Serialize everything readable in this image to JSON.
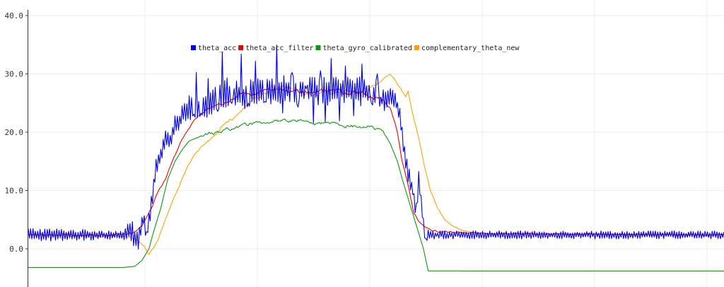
{
  "chart_data": {
    "type": "line",
    "title": "",
    "xlabel": "",
    "ylabel": "",
    "ylim": [
      -6.5,
      40.5
    ],
    "xlim": [
      0,
      588
    ],
    "grid": true,
    "legend_position": "top-center",
    "y_ticks": [
      {
        "value": 0,
        "label": "0.0"
      },
      {
        "value": 10,
        "label": "10.0"
      },
      {
        "value": 20,
        "label": "20.0"
      },
      {
        "value": 30,
        "label": "30.0"
      },
      {
        "value": 40,
        "label": "40.0"
      }
    ],
    "x_grid_values": [
      0,
      95,
      190,
      285,
      380,
      475,
      570
    ],
    "series": [
      {
        "name": "theta_acc",
        "color": "#0000ee",
        "anchors": [
          [
            0,
            2.4
          ],
          [
            80,
            2.4
          ],
          [
            87,
            3.0
          ],
          [
            93,
            1.0
          ],
          [
            97,
            5.0
          ],
          [
            100,
            2.0
          ],
          [
            104,
            8.0
          ],
          [
            108,
            14
          ],
          [
            112,
            16
          ],
          [
            116,
            19
          ],
          [
            120,
            18
          ],
          [
            124,
            22
          ],
          [
            128,
            22
          ],
          [
            132,
            24
          ],
          [
            140,
            24
          ],
          [
            150,
            24
          ],
          [
            160,
            26
          ],
          [
            170,
            27
          ],
          [
            180,
            26
          ],
          [
            190,
            27
          ],
          [
            200,
            27
          ],
          [
            210,
            27
          ],
          [
            220,
            27.5
          ],
          [
            230,
            27
          ],
          [
            240,
            27
          ],
          [
            250,
            27
          ],
          [
            260,
            27
          ],
          [
            270,
            27
          ],
          [
            280,
            27
          ],
          [
            290,
            27
          ],
          [
            300,
            26
          ],
          [
            305,
            26
          ],
          [
            310,
            26
          ],
          [
            315,
            22
          ],
          [
            318,
            16
          ],
          [
            322,
            12
          ],
          [
            325,
            10
          ],
          [
            328,
            6
          ],
          [
            330,
            12
          ],
          [
            333,
            6
          ],
          [
            336,
            1.2
          ],
          [
            337,
            2.5
          ],
          [
            345,
            2.4
          ],
          [
            588,
            2.4
          ]
        ],
        "noise": [
          [
            0,
            2.5
          ],
          [
            80,
            1.5
          ],
          [
            88,
            4.5
          ],
          [
            104,
            3.5
          ],
          [
            120,
            3.0
          ],
          [
            136,
            4.5
          ],
          [
            145,
            5.0
          ],
          [
            300,
            5.0
          ],
          [
            306,
            3.0
          ],
          [
            315,
            4.0
          ],
          [
            326,
            4.0
          ],
          [
            337,
            2.5
          ],
          [
            345,
            1.4
          ],
          [
            588,
            1.4
          ]
        ],
        "spikes": [
          [
            140,
            -3
          ],
          [
            142,
            4
          ],
          [
            146,
            -3
          ],
          [
            152,
            3
          ],
          [
            160,
            -4
          ],
          [
            164,
            5
          ],
          [
            172,
            -3
          ],
          [
            180,
            5
          ],
          [
            186,
            -4
          ],
          [
            192,
            3
          ],
          [
            200,
            -3
          ],
          [
            210,
            6
          ],
          [
            215,
            -3
          ],
          [
            223,
            4
          ],
          [
            228,
            -4
          ],
          [
            235,
            2
          ],
          [
            241,
            -4
          ],
          [
            247,
            5
          ],
          [
            251,
            -4
          ],
          [
            256,
            4
          ],
          [
            263,
            -3
          ],
          [
            268,
            2
          ],
          [
            275,
            -3
          ],
          [
            282,
            3
          ],
          [
            290,
            -3
          ],
          [
            295,
            6
          ],
          [
            298,
            -2
          ]
        ]
      },
      {
        "name": "theta_acc_filter",
        "color": "#ee0000",
        "anchors": [
          [
            0,
            2.4
          ],
          [
            80,
            2.4
          ],
          [
            88,
            2.7
          ],
          [
            96,
            3.8
          ],
          [
            104,
            7.0
          ],
          [
            110,
            10
          ],
          [
            116,
            12
          ],
          [
            122,
            15
          ],
          [
            128,
            18
          ],
          [
            134,
            20
          ],
          [
            140,
            22
          ],
          [
            146,
            23.2
          ],
          [
            152,
            24
          ],
          [
            158,
            24.5
          ],
          [
            164,
            25
          ],
          [
            170,
            25.5
          ],
          [
            176,
            26
          ],
          [
            182,
            26.5
          ],
          [
            188,
            26.5
          ],
          [
            194,
            26.5
          ],
          [
            200,
            27
          ],
          [
            220,
            27
          ],
          [
            240,
            27
          ],
          [
            260,
            27
          ],
          [
            280,
            26.5
          ],
          [
            295,
            26
          ],
          [
            300,
            25.5
          ],
          [
            306,
            24
          ],
          [
            312,
            20
          ],
          [
            316,
            15
          ],
          [
            322,
            10
          ],
          [
            326,
            6
          ],
          [
            332,
            4.2
          ],
          [
            338,
            3.4
          ],
          [
            345,
            3.0
          ],
          [
            360,
            2.8
          ],
          [
            380,
            2.6
          ],
          [
            588,
            2.4
          ]
        ],
        "noise": [
          [
            0,
            0.6
          ],
          [
            150,
            0.5
          ],
          [
            170,
            1.2
          ],
          [
            300,
            1.2
          ],
          [
            305,
            0.5
          ],
          [
            588,
            0.4
          ]
        ]
      },
      {
        "name": "theta_gyro_calibrated",
        "color": "#0a9a0a",
        "anchors": [
          [
            0,
            -3.2
          ],
          [
            80,
            -3.2
          ],
          [
            90,
            -3.0
          ],
          [
            96,
            -2.0
          ],
          [
            102,
            0.0
          ],
          [
            106,
            3.0
          ],
          [
            112,
            7.0
          ],
          [
            118,
            12
          ],
          [
            124,
            15
          ],
          [
            130,
            17
          ],
          [
            136,
            18.5
          ],
          [
            142,
            19
          ],
          [
            150,
            19.5
          ],
          [
            160,
            20
          ],
          [
            170,
            20.5
          ],
          [
            180,
            21
          ],
          [
            190,
            21.5
          ],
          [
            200,
            21.5
          ],
          [
            210,
            22
          ],
          [
            220,
            22
          ],
          [
            230,
            22
          ],
          [
            240,
            21.5
          ],
          [
            250,
            21.5
          ],
          [
            260,
            21.5
          ],
          [
            270,
            21
          ],
          [
            280,
            21
          ],
          [
            290,
            21
          ],
          [
            300,
            20
          ],
          [
            306,
            18
          ],
          [
            312,
            15
          ],
          [
            316,
            12
          ],
          [
            322,
            8
          ],
          [
            328,
            4
          ],
          [
            334,
            0
          ],
          [
            338,
            -3.8
          ],
          [
            588,
            -3.8
          ]
        ],
        "noise": [
          [
            0,
            0.0
          ],
          [
            142,
            0.0
          ],
          [
            150,
            0.9
          ],
          [
            300,
            0.9
          ],
          [
            305,
            0.0
          ],
          [
            588,
            0.0
          ]
        ]
      },
      {
        "name": "complementary_theta_new",
        "color": "#ffa000",
        "anchors": [
          [
            0,
            2.3
          ],
          [
            85,
            2.1
          ],
          [
            92,
            1.5
          ],
          [
            98,
            0.5
          ],
          [
            102,
            -0.8
          ],
          [
            106,
            0.2
          ],
          [
            110,
            1.8
          ],
          [
            116,
            5
          ],
          [
            122,
            8
          ],
          [
            128,
            11
          ],
          [
            134,
            14
          ],
          [
            140,
            16
          ],
          [
            146,
            17.5
          ],
          [
            152,
            18.5
          ],
          [
            158,
            19.5
          ],
          [
            164,
            21
          ],
          [
            170,
            22
          ],
          [
            176,
            23
          ],
          [
            182,
            24
          ],
          [
            188,
            25
          ],
          [
            194,
            26
          ],
          [
            202,
            27
          ],
          [
            210,
            27.5
          ],
          [
            220,
            27.5
          ],
          [
            230,
            27
          ],
          [
            240,
            26.5
          ],
          [
            250,
            27
          ],
          [
            260,
            26.5
          ],
          [
            270,
            27
          ],
          [
            280,
            27
          ],
          [
            286,
            27.5
          ],
          [
            292,
            28
          ],
          [
            297,
            28.5
          ],
          [
            302,
            29.5
          ],
          [
            306,
            30
          ],
          [
            310,
            29
          ],
          [
            316,
            27
          ],
          [
            319,
            26
          ],
          [
            321,
            27
          ],
          [
            325,
            23
          ],
          [
            330,
            19
          ],
          [
            335,
            14
          ],
          [
            340,
            10
          ],
          [
            346,
            7
          ],
          [
            352,
            5
          ],
          [
            358,
            4
          ],
          [
            366,
            3.2
          ],
          [
            376,
            2.8
          ],
          [
            390,
            2.6
          ],
          [
            588,
            2.4
          ]
        ],
        "noise": [
          [
            0,
            0.5
          ],
          [
            150,
            0.4
          ],
          [
            180,
            1.2
          ],
          [
            286,
            1.2
          ],
          [
            295,
            0.3
          ],
          [
            340,
            0.3
          ],
          [
            350,
            0.0
          ],
          [
            588,
            0.0
          ]
        ]
      }
    ]
  },
  "legend": {
    "items": [
      {
        "label": "theta_acc",
        "color": "#0000ee"
      },
      {
        "label": "theta_acc_filter",
        "color": "#ee0000"
      },
      {
        "label": "theta_gyro_calibrated",
        "color": "#0a9a0a"
      },
      {
        "label": "complementary_theta_new",
        "color": "#ffa000"
      }
    ]
  }
}
